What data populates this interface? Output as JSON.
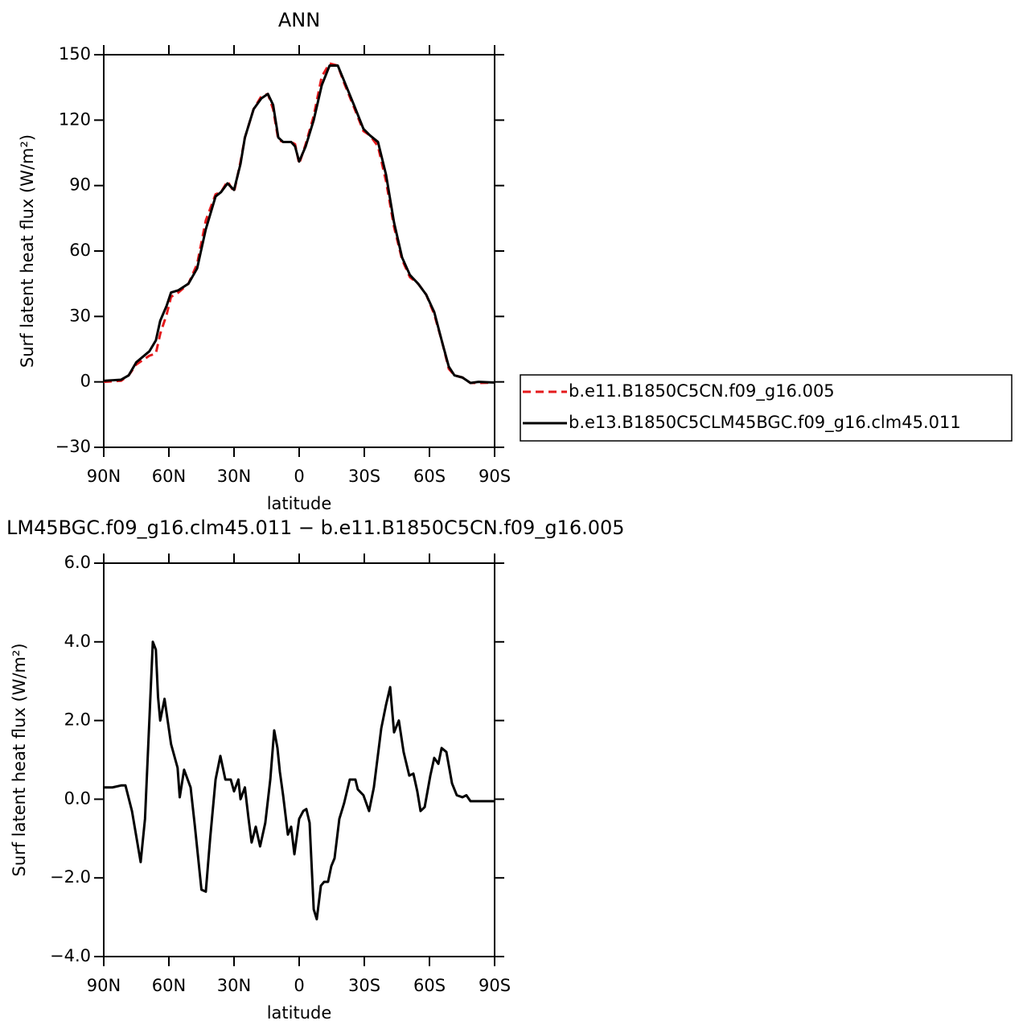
{
  "chart_data": [
    {
      "type": "line",
      "title": "ANN",
      "ylabel": "Surf latent heat flux (W/m²)",
      "xlabel": "latitude",
      "x": [
        90,
        82,
        78.5,
        75,
        69,
        66,
        64,
        61,
        59,
        55.6,
        51,
        47,
        43,
        38.5,
        36,
        33,
        30,
        27,
        25,
        21,
        17.4,
        14.4,
        12,
        9.6,
        7.4,
        3.7,
        1.9,
        0,
        -3,
        -6.7,
        -10.4,
        -14,
        -17.8,
        -20.7,
        -25.2,
        -29.6,
        -32.6,
        -36.3,
        -40,
        -43.7,
        -47.4,
        -51,
        -54.8,
        -58.5,
        -62.2,
        -65.9,
        -68.9,
        -71.5,
        -75.2,
        -78.9,
        -82.6,
        -90
      ],
      "series": [
        {
          "name": "b.e11.B1850C5CN.f09_g16.005",
          "color": "#e41a1c",
          "line_style": "dashed",
          "values": [
            0,
            0.5,
            3,
            8,
            12,
            13,
            22,
            31,
            39,
            41,
            45,
            54,
            74,
            86,
            87,
            92,
            87,
            101,
            112,
            125,
            131,
            132,
            125,
            111,
            110,
            110,
            109,
            100,
            109,
            122,
            140,
            146,
            145,
            137,
            126,
            115,
            113,
            108,
            92,
            71,
            56,
            48,
            45,
            40,
            31,
            18,
            6,
            3,
            2,
            -0.5,
            -0.5,
            -0.3
          ]
        },
        {
          "name": "b.e13.B1850C5CLM45BGC.f09_g16.clm45.011",
          "color": "#000000",
          "line_style": "solid",
          "values": [
            0.5,
            1,
            3,
            9,
            14,
            19,
            28,
            35,
            41,
            42,
            45,
            52,
            70,
            85,
            87,
            91,
            88,
            100,
            112,
            125,
            130,
            132,
            127,
            112,
            110,
            110,
            108,
            101,
            108,
            120,
            136,
            145,
            145,
            138,
            127,
            116,
            113,
            110,
            95,
            73,
            57,
            49,
            45,
            40,
            32,
            18,
            7,
            3,
            2,
            -0.5,
            0,
            -0.3
          ]
        }
      ],
      "xlim": [
        90,
        -90
      ],
      "xticks": [
        {
          "value": 90,
          "label": "90N"
        },
        {
          "value": 60,
          "label": "60N"
        },
        {
          "value": 30,
          "label": "30N"
        },
        0,
        {
          "value": -30,
          "label": "30S"
        },
        {
          "value": -60,
          "label": "60S"
        },
        {
          "value": -90,
          "label": "90S"
        }
      ],
      "ylim": [
        -30,
        150
      ],
      "yticks": [
        {
          "value": -30,
          "label": "−30"
        },
        0,
        30,
        60,
        90,
        120,
        150
      ]
    },
    {
      "type": "line",
      "title": "LM45BGC.f09_g16.clm45.011 − b.e11.B1850C5CN.f09_g16.005",
      "ylabel": "Surf latent heat flux (W/m²)",
      "xlabel": "latitude",
      "color": "#000000",
      "x": [
        90,
        86,
        82,
        80,
        77,
        73,
        71,
        69,
        67.4,
        66,
        65,
        64,
        62,
        59,
        56,
        55,
        53,
        50,
        48,
        45,
        43,
        41,
        38.5,
        36.3,
        34,
        31.5,
        30,
        28,
        27,
        25,
        23.3,
        21.9,
        20,
        18,
        15.6,
        13.3,
        11.5,
        10,
        8.9,
        7.4,
        5.2,
        3.7,
        2.2,
        0,
        -1.9,
        -3.3,
        -4.8,
        -6.7,
        -8.1,
        -10,
        -11.5,
        -13.3,
        -14.8,
        -16.3,
        -18.5,
        -20.7,
        -23.3,
        -25.9,
        -27,
        -29.6,
        -32.2,
        -34.4,
        -37.8,
        -40,
        -41.9,
        -43.7,
        -45.9,
        -48.1,
        -50.7,
        -52.6,
        -54.4,
        -55.9,
        -57.8,
        -60.4,
        -62.2,
        -64.1,
        -65.6,
        -67.8,
        -70.4,
        -72.6,
        -75.2,
        -77,
        -78.9,
        -81.5,
        -84.4,
        -90
      ],
      "values": [
        0.3,
        0.3,
        0.35,
        0.35,
        -0.3,
        -1.6,
        -0.5,
        2.0,
        4.0,
        3.8,
        2.6,
        2.0,
        2.55,
        1.4,
        0.8,
        0.05,
        0.75,
        0.3,
        -0.7,
        -2.3,
        -2.35,
        -1.0,
        0.5,
        1.1,
        0.5,
        0.5,
        0.2,
        0.5,
        0.0,
        0.3,
        -0.5,
        -1.1,
        -0.7,
        -1.2,
        -0.6,
        0.5,
        1.75,
        1.3,
        0.7,
        0.1,
        -0.9,
        -0.7,
        -1.4,
        -0.5,
        -0.3,
        -0.25,
        -0.6,
        -2.8,
        -3.05,
        -2.2,
        -2.1,
        -2.1,
        -1.7,
        -1.5,
        -0.5,
        -0.1,
        0.5,
        0.5,
        0.25,
        0.1,
        -0.3,
        0.3,
        1.8,
        2.4,
        2.85,
        1.7,
        2.0,
        1.2,
        0.6,
        0.65,
        0.2,
        -0.3,
        -0.2,
        0.6,
        1.05,
        0.9,
        1.3,
        1.2,
        0.4,
        0.1,
        0.05,
        0.1,
        -0.05,
        -0.05,
        -0.05,
        -0.05
      ],
      "xlim": [
        90,
        -90
      ],
      "xticks": [
        {
          "value": 90,
          "label": "90N"
        },
        {
          "value": 60,
          "label": "60N"
        },
        {
          "value": 30,
          "label": "30N"
        },
        0,
        {
          "value": -30,
          "label": "30S"
        },
        {
          "value": -60,
          "label": "60S"
        },
        {
          "value": -90,
          "label": "90S"
        }
      ],
      "ylim": [
        -4,
        6
      ],
      "yticks": [
        {
          "value": -4,
          "label": "−4.0"
        },
        {
          "value": -2,
          "label": "−2.0"
        },
        {
          "value": 0,
          "label": "0.0"
        },
        {
          "value": 2,
          "label": "2.0"
        },
        {
          "value": 4,
          "label": "4.0"
        },
        {
          "value": 6,
          "label": "6.0"
        }
      ]
    }
  ]
}
